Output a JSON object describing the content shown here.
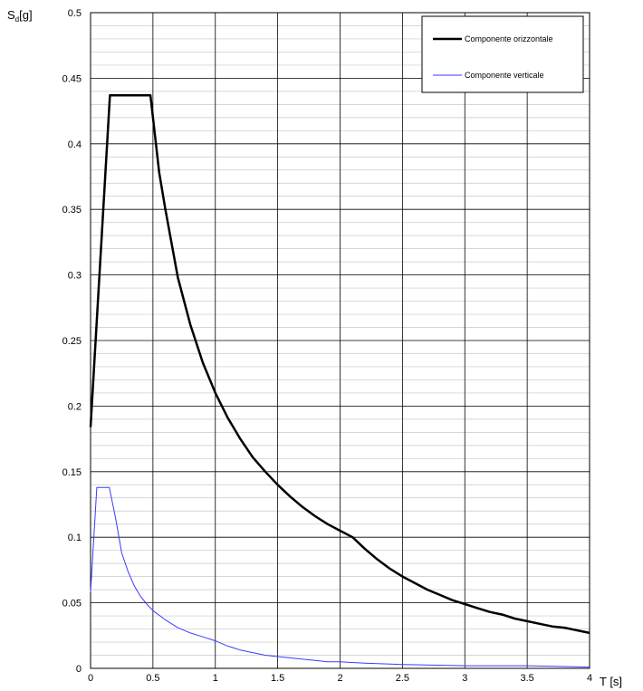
{
  "chart_data": {
    "type": "line",
    "title": "",
    "ylabel_main": "S",
    "ylabel_sub": "d",
    "ylabel_unit": "[g]",
    "xlabel": "T  [s]",
    "xlim": [
      0,
      4
    ],
    "ylim": [
      0,
      0.5
    ],
    "x_ticks": [
      "0",
      "0.5",
      "1",
      "1.5",
      "2",
      "2.5",
      "3",
      "3.5",
      "4"
    ],
    "y_ticks": [
      "0",
      "0.05",
      "0.1",
      "0.15",
      "0.2",
      "0.25",
      "0.3",
      "0.35",
      "0.4",
      "0.45",
      "0.5"
    ],
    "grid": true,
    "legend_position": "top-right",
    "series": [
      {
        "name": "Componente orizzontale",
        "color": "#000000",
        "points": [
          [
            0,
            0.184
          ],
          [
            0.155,
            0.437
          ],
          [
            0.48,
            0.437
          ],
          [
            0.55,
            0.378
          ],
          [
            0.6,
            0.35
          ],
          [
            0.7,
            0.298
          ],
          [
            0.8,
            0.262
          ],
          [
            0.9,
            0.233
          ],
          [
            1.0,
            0.21
          ],
          [
            1.1,
            0.191
          ],
          [
            1.2,
            0.175
          ],
          [
            1.3,
            0.161
          ],
          [
            1.4,
            0.15
          ],
          [
            1.5,
            0.14
          ],
          [
            1.6,
            0.131
          ],
          [
            1.7,
            0.123
          ],
          [
            1.8,
            0.116
          ],
          [
            1.9,
            0.11
          ],
          [
            2.0,
            0.105
          ],
          [
            2.1,
            0.1
          ],
          [
            2.2,
            0.091
          ],
          [
            2.3,
            0.083
          ],
          [
            2.4,
            0.076
          ],
          [
            2.5,
            0.07
          ],
          [
            2.6,
            0.065
          ],
          [
            2.7,
            0.06
          ],
          [
            2.8,
            0.056
          ],
          [
            2.9,
            0.052
          ],
          [
            3.0,
            0.049
          ],
          [
            3.1,
            0.046
          ],
          [
            3.2,
            0.043
          ],
          [
            3.3,
            0.041
          ],
          [
            3.4,
            0.038
          ],
          [
            3.5,
            0.036
          ],
          [
            3.6,
            0.034
          ],
          [
            3.7,
            0.032
          ],
          [
            3.8,
            0.031
          ],
          [
            3.9,
            0.029
          ],
          [
            4.0,
            0.027
          ]
        ]
      },
      {
        "name": "Componente verticale",
        "color": "#3a3aff",
        "points": [
          [
            0,
            0.058
          ],
          [
            0.05,
            0.138
          ],
          [
            0.15,
            0.138
          ],
          [
            0.2,
            0.115
          ],
          [
            0.25,
            0.088
          ],
          [
            0.3,
            0.074
          ],
          [
            0.35,
            0.063
          ],
          [
            0.4,
            0.055
          ],
          [
            0.45,
            0.049
          ],
          [
            0.5,
            0.044
          ],
          [
            0.6,
            0.037
          ],
          [
            0.7,
            0.031
          ],
          [
            0.8,
            0.027
          ],
          [
            0.9,
            0.024
          ],
          [
            1.0,
            0.021
          ],
          [
            1.1,
            0.017
          ],
          [
            1.2,
            0.014
          ],
          [
            1.3,
            0.012
          ],
          [
            1.4,
            0.01
          ],
          [
            1.5,
            0.009
          ],
          [
            1.6,
            0.008
          ],
          [
            1.7,
            0.007
          ],
          [
            1.8,
            0.006
          ],
          [
            1.9,
            0.005
          ],
          [
            2.0,
            0.005
          ],
          [
            2.2,
            0.004
          ],
          [
            2.5,
            0.003
          ],
          [
            3.0,
            0.002
          ],
          [
            3.5,
            0.002
          ],
          [
            4.0,
            0.001
          ]
        ]
      }
    ]
  }
}
